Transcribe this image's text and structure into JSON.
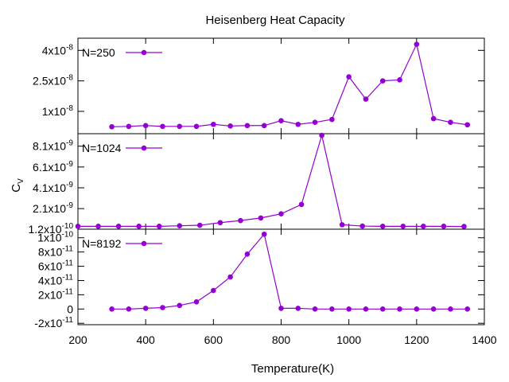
{
  "chart_data": [
    {
      "type": "line",
      "title": "Heisenberg Heat Capacity",
      "xlabel": "Temperature(K)",
      "ylabel": "C_V",
      "xlim": [
        200,
        1400
      ],
      "ylim": [
        -1e-09,
        4.6e-08
      ],
      "yticks": [
        "1x10-8",
        "2.5x10-8",
        "4x10-8"
      ],
      "ytick_values": [
        1e-08,
        2.5e-08,
        4e-08
      ],
      "grid": false,
      "legend": "top-left",
      "series": [
        {
          "name": "N=250",
          "color": "#9400D3",
          "x": [
            300,
            350,
            400,
            450,
            500,
            550,
            600,
            650,
            700,
            750,
            800,
            850,
            900,
            950,
            1000,
            1050,
            1100,
            1150,
            1200,
            1250,
            1300,
            1350
          ],
          "y": [
            2.4e-09,
            2.6e-09,
            3e-09,
            2.6e-09,
            2.6e-09,
            2.6e-09,
            3.6e-09,
            2.8e-09,
            3e-09,
            3e-09,
            5.4e-09,
            3.6e-09,
            4.6e-09,
            6e-09,
            2.7e-08,
            1.6e-08,
            2.5e-08,
            2.55e-08,
            4.3e-08,
            6.4e-09,
            4.6e-09,
            3.4e-09
          ]
        }
      ]
    },
    {
      "type": "line",
      "xlim": [
        200,
        1400
      ],
      "ylim": [
        1.2e-10,
        9.3e-09
      ],
      "yticks": [
        "1.2x10-10",
        "2.1x10-9",
        "4.1x10-9",
        "6.1x10-9",
        "8.1x10-9"
      ],
      "ytick_values": [
        1.2e-10,
        2.1e-09,
        4.1e-09,
        6.1e-09,
        8.1e-09
      ],
      "grid": false,
      "legend": "top-left",
      "series": [
        {
          "name": "N=1024",
          "color": "#9400D3",
          "x": [
            200,
            260,
            320,
            380,
            440,
            500,
            560,
            620,
            680,
            740,
            800,
            860,
            920,
            980,
            1040,
            1100,
            1160,
            1220,
            1280,
            1340
          ],
          "y": [
            4e-10,
            4e-10,
            4e-10,
            4e-10,
            4e-10,
            4.5e-10,
            5e-10,
            7.5e-10,
            9.5e-10,
            1.2e-09,
            1.6e-09,
            2.5e-09,
            1.05e-08,
            5.5e-10,
            4.2e-10,
            4e-10,
            4e-10,
            4e-10,
            4e-10,
            3.8e-10
          ]
        }
      ]
    },
    {
      "type": "line",
      "xlim": [
        200,
        1400
      ],
      "ylim": [
        -2.2e-11,
        1.12e-10
      ],
      "yticks": [
        "-2x10-11",
        "0",
        "2x10-11",
        "4x10-11",
        "6x10-11",
        "8x10-11",
        "1x10-10"
      ],
      "ytick_values": [
        -2e-11,
        0,
        2e-11,
        4e-11,
        6e-11,
        8e-11,
        1e-10
      ],
      "xticks": [
        "200",
        "400",
        "600",
        "800",
        "1000",
        "1200",
        "1400"
      ],
      "xtick_values": [
        200,
        400,
        600,
        800,
        1000,
        1200,
        1400
      ],
      "grid": false,
      "legend": "top-left",
      "series": [
        {
          "name": "N=8192",
          "color": "#9400D3",
          "x": [
            300,
            350,
            400,
            450,
            500,
            550,
            600,
            650,
            700,
            750,
            800,
            850,
            900,
            950,
            1000,
            1050,
            1100,
            1150,
            1200,
            1250,
            1300,
            1350
          ],
          "y": [
            0,
            0,
            1e-12,
            2e-12,
            5e-12,
            1e-11,
            2.6e-11,
            4.5e-11,
            7.7e-11,
            1.05e-10,
            1e-12,
            1e-12,
            0,
            0,
            0,
            0,
            0,
            0,
            0,
            0,
            0,
            0
          ]
        }
      ]
    }
  ]
}
